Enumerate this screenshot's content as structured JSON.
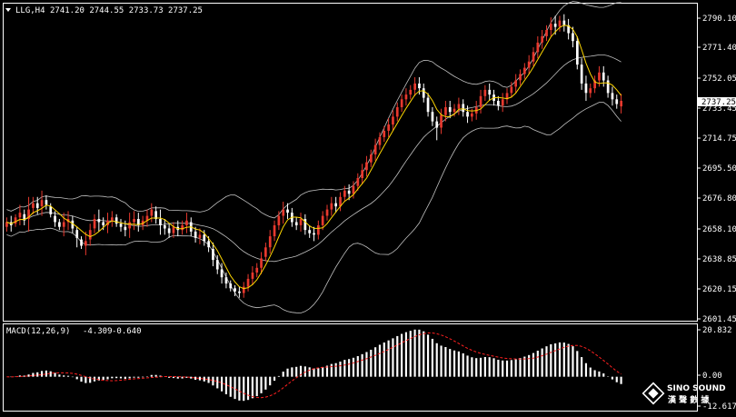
{
  "header": {
    "symbol": "LLG,H4",
    "ohlc": "2741.20 2744.55 2733.73 2737.25"
  },
  "colors": {
    "background": "#000000",
    "bull_candle": "#e8392e",
    "bear_candle": "#ffffff",
    "moving_average": "#ffd700",
    "bollinger": "#c0c0c0",
    "macd_histogram": "#ffffff",
    "macd_signal": "#ff2020",
    "axis": "#ffffff"
  },
  "chart_data": [
    {
      "type": "candlestick",
      "title": "LLG,H4",
      "indicators": [
        "Moving Average",
        "Bollinger Bands"
      ],
      "y_ticks": [
        "2790.10",
        "2771.40",
        "2752.05",
        "2733.45",
        "2714.75",
        "2695.50",
        "2676.80",
        "2658.10",
        "2638.85",
        "2620.15",
        "2601.45"
      ],
      "ylim": [
        2598,
        2797
      ],
      "current_price": "2737.25",
      "grid": false,
      "close": [
        2660,
        2658,
        2663,
        2666,
        2661,
        2668,
        2672,
        2669,
        2674,
        2671,
        2665,
        2660,
        2657,
        2660,
        2662,
        2656,
        2650,
        2645,
        2648,
        2655,
        2662,
        2660,
        2658,
        2661,
        2663,
        2659,
        2657,
        2655,
        2660,
        2662,
        2658,
        2661,
        2664,
        2668,
        2662,
        2658,
        2656,
        2653,
        2657,
        2655,
        2658,
        2661,
        2654,
        2650,
        2652,
        2648,
        2644,
        2636,
        2630,
        2625,
        2621,
        2618,
        2616,
        2615,
        2619,
        2624,
        2628,
        2631,
        2637,
        2644,
        2651,
        2658,
        2664,
        2668,
        2666,
        2660,
        2658,
        2662,
        2655,
        2653,
        2652,
        2658,
        2664,
        2668,
        2672,
        2670,
        2676,
        2680,
        2678,
        2683,
        2688,
        2693,
        2698,
        2703,
        2709,
        2714,
        2718,
        2722,
        2727,
        2733,
        2738,
        2741,
        2744,
        2748,
        2745,
        2739,
        2730,
        2724,
        2720,
        2728,
        2733,
        2730,
        2732,
        2735,
        2730,
        2727,
        2729,
        2733,
        2740,
        2744,
        2741,
        2737,
        2734,
        2738,
        2742,
        2746,
        2750,
        2754,
        2758,
        2762,
        2768,
        2774,
        2778,
        2782,
        2786,
        2784,
        2788,
        2785,
        2780,
        2775,
        2760,
        2748,
        2742,
        2745,
        2750,
        2755,
        2750,
        2742,
        2738,
        2735,
        2737
      ],
      "open_offset": [
        -3,
        2,
        -4,
        -3,
        4,
        -6,
        -3,
        3,
        -4,
        3,
        5,
        4,
        3,
        -3,
        -2,
        5,
        5,
        4,
        -3,
        -6,
        -6,
        2,
        2,
        -3,
        -2,
        4,
        2,
        2,
        -4,
        -2,
        4,
        -3,
        -3,
        -4,
        5,
        4,
        2,
        3,
        -4,
        2,
        -3,
        -3,
        6,
        4,
        -2,
        4,
        4,
        7,
        6,
        5,
        4,
        3,
        2,
        1,
        -4,
        -5,
        -4,
        -3,
        -6,
        -6,
        -7,
        -7,
        -6,
        -4,
        2,
        6,
        2,
        -4,
        7,
        2,
        1,
        -6,
        -6,
        -4,
        -4,
        2,
        -6,
        -4,
        2,
        -5,
        -5,
        -5,
        -5,
        -5,
        -6,
        -5,
        -4,
        -4,
        -5,
        -6,
        -5,
        -3,
        -3,
        -4,
        3,
        6,
        9,
        6,
        4,
        -8,
        -5,
        3,
        -2,
        -3,
        5,
        3,
        -2,
        -4,
        -7,
        -4,
        3,
        4,
        3,
        -4,
        -4,
        -4,
        -4,
        -4,
        -4,
        -4,
        -6,
        -6,
        -4,
        -4,
        -4,
        2,
        -4,
        3,
        5,
        5,
        15,
        12,
        6,
        -3,
        -5,
        -5,
        5,
        8,
        4,
        3,
        -3.5
      ],
      "high_offset": [
        3,
        4,
        2,
        5,
        3,
        8,
        4,
        4,
        6,
        3,
        2,
        3,
        2,
        6,
        5,
        3,
        2,
        2,
        6,
        4,
        3,
        6,
        3,
        5,
        4,
        2,
        3,
        4,
        6,
        5,
        4,
        3,
        4,
        4,
        3,
        6,
        4,
        3,
        3,
        4,
        3,
        5,
        3,
        3,
        4,
        3,
        3,
        4,
        3,
        4,
        3,
        2,
        2,
        3,
        3,
        3,
        4,
        3,
        4,
        3,
        4,
        3,
        3,
        5,
        4,
        3,
        3,
        4,
        3,
        3,
        4,
        3,
        3,
        3,
        4,
        4,
        3,
        3,
        4,
        3,
        3,
        4,
        4,
        3,
        4,
        3,
        3,
        4,
        4,
        3,
        3,
        4,
        3,
        4,
        4,
        3,
        3,
        3,
        3,
        4,
        4,
        4,
        3,
        4,
        3,
        4,
        3,
        4,
        4,
        3,
        4,
        3,
        3,
        4,
        3,
        3,
        4,
        3,
        3,
        4,
        3,
        4,
        4,
        3,
        4,
        5,
        3,
        4,
        4,
        4,
        3,
        4,
        5,
        3,
        3,
        4,
        4,
        3,
        4,
        3,
        4.5
      ],
      "low_offset": [
        3,
        4,
        2,
        5,
        3,
        8,
        4,
        4,
        6,
        3,
        2,
        3,
        2,
        6,
        5,
        3,
        6,
        2,
        6,
        4,
        3,
        6,
        3,
        5,
        4,
        2,
        3,
        4,
        6,
        5,
        4,
        3,
        4,
        4,
        3,
        6,
        4,
        3,
        3,
        4,
        3,
        5,
        3,
        3,
        4,
        3,
        3,
        4,
        3,
        4,
        3,
        2,
        3,
        3,
        3,
        3,
        4,
        3,
        4,
        3,
        4,
        3,
        3,
        5,
        4,
        3,
        3,
        4,
        3,
        3,
        4,
        3,
        3,
        3,
        4,
        4,
        3,
        3,
        4,
        3,
        3,
        4,
        4,
        3,
        4,
        3,
        3,
        4,
        4,
        3,
        3,
        4,
        3,
        4,
        4,
        3,
        3,
        3,
        8,
        4,
        4,
        4,
        3,
        4,
        3,
        4,
        3,
        4,
        4,
        3,
        4,
        3,
        3,
        4,
        3,
        3,
        4,
        3,
        3,
        4,
        3,
        4,
        4,
        3,
        4,
        5,
        3,
        4,
        4,
        4,
        3,
        4,
        5,
        3,
        3,
        4,
        4,
        3,
        4,
        3,
        4.5
      ]
    },
    {
      "type": "bar",
      "title": "MACD(12,26,9)",
      "main_value": "-4.309",
      "signal_value": "-0.640",
      "y_ticks": [
        "20.832",
        "0.00",
        "-12.617"
      ],
      "ylim": [
        -13.5,
        22
      ]
    }
  ],
  "watermark": {
    "line1": "SINO SOUND",
    "line2": "漢 聲 數 據"
  }
}
